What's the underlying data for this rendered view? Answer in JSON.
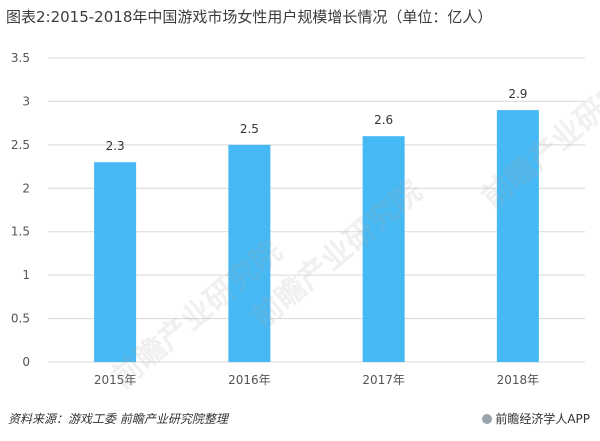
{
  "title": "图表2:2015-2018年中国游戏市场女性用户规模增长情况（单位：亿人）",
  "source": "资料来源：游戏工委  前瞻产业研究院整理",
  "brand": "前瞻经济学人APP",
  "watermark": "前瞻产业研究院",
  "colors": {
    "bar": "#46b9f5",
    "grid": "#d9d9d9",
    "axis_text": "#555555"
  },
  "chart_data": {
    "type": "bar",
    "categories": [
      "2015年",
      "2016年",
      "2017年",
      "2018年"
    ],
    "values": [
      2.3,
      2.5,
      2.6,
      2.9
    ],
    "value_labels": [
      "2.3",
      "2.5",
      "2.6",
      "2.9"
    ],
    "ylim": [
      0,
      3.5
    ],
    "y_ticks": [
      "0",
      "0.5",
      "1",
      "1.5",
      "2",
      "2.5",
      "3",
      "3.5"
    ],
    "grid": true,
    "legend": "none"
  }
}
